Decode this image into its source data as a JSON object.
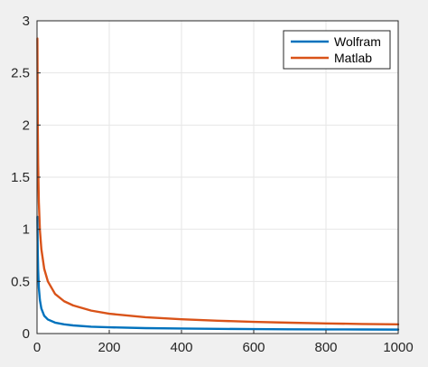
{
  "chart_data": {
    "type": "line",
    "xlim": [
      0,
      1000
    ],
    "ylim": [
      0,
      3
    ],
    "xticks": [
      0,
      200,
      400,
      600,
      800,
      1000
    ],
    "yticks": [
      0,
      0.5,
      1,
      1.5,
      2,
      2.5,
      3
    ],
    "xtick_labels": [
      "0",
      "200",
      "400",
      "600",
      "800",
      "1000"
    ],
    "ytick_labels": [
      "0",
      "0.5",
      "1",
      "1.5",
      "2",
      "2.5",
      "3"
    ],
    "grid": true,
    "legend_position": "top-right",
    "series": [
      {
        "name": "Wolfram",
        "color": "#0072bd",
        "x": [
          1,
          2,
          3,
          5,
          8,
          12,
          20,
          30,
          50,
          75,
          100,
          150,
          200,
          300,
          400,
          500,
          600,
          700,
          800,
          900,
          1000
        ],
        "y": [
          1.12,
          0.8,
          0.62,
          0.44,
          0.32,
          0.24,
          0.17,
          0.135,
          0.105,
          0.088,
          0.078,
          0.066,
          0.06,
          0.052,
          0.048,
          0.045,
          0.043,
          0.041,
          0.04,
          0.039,
          0.038
        ]
      },
      {
        "name": "Matlab",
        "color": "#d95319",
        "x": [
          1,
          2,
          3,
          5,
          8,
          12,
          20,
          30,
          50,
          75,
          100,
          150,
          200,
          300,
          400,
          500,
          600,
          700,
          800,
          900,
          1000
        ],
        "y": [
          2.83,
          2.0,
          1.63,
          1.26,
          0.99,
          0.81,
          0.62,
          0.5,
          0.38,
          0.31,
          0.27,
          0.22,
          0.19,
          0.157,
          0.137,
          0.123,
          0.112,
          0.104,
          0.097,
          0.092,
          0.088
        ]
      }
    ]
  }
}
